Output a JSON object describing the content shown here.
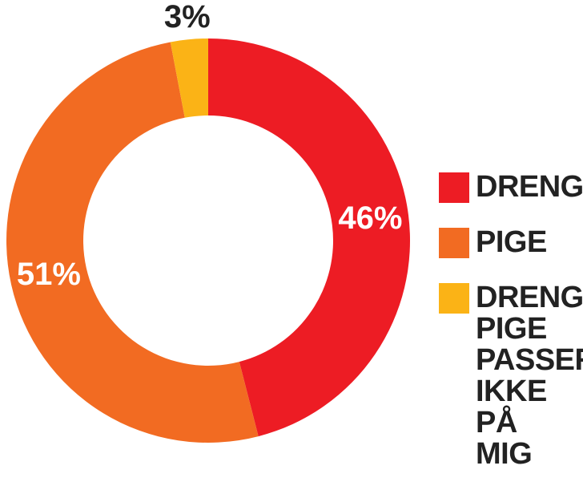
{
  "chart_data": {
    "type": "pie",
    "variant": "donut",
    "title": "",
    "slices": [
      {
        "label": "DRENG",
        "value": 46,
        "display": "46%",
        "color": "#ED1C24",
        "label_color": "#ffffff"
      },
      {
        "label": "PIGE",
        "value": 51,
        "display": "51%",
        "color": "#F26B22",
        "label_color": "#ffffff"
      },
      {
        "label": "DRENG/ PIGE PASSER IKKE PÅ MIG",
        "value": 3,
        "display": "3%",
        "color": "#FBB316",
        "label_color": "#222222"
      }
    ],
    "legend_position": "right"
  }
}
